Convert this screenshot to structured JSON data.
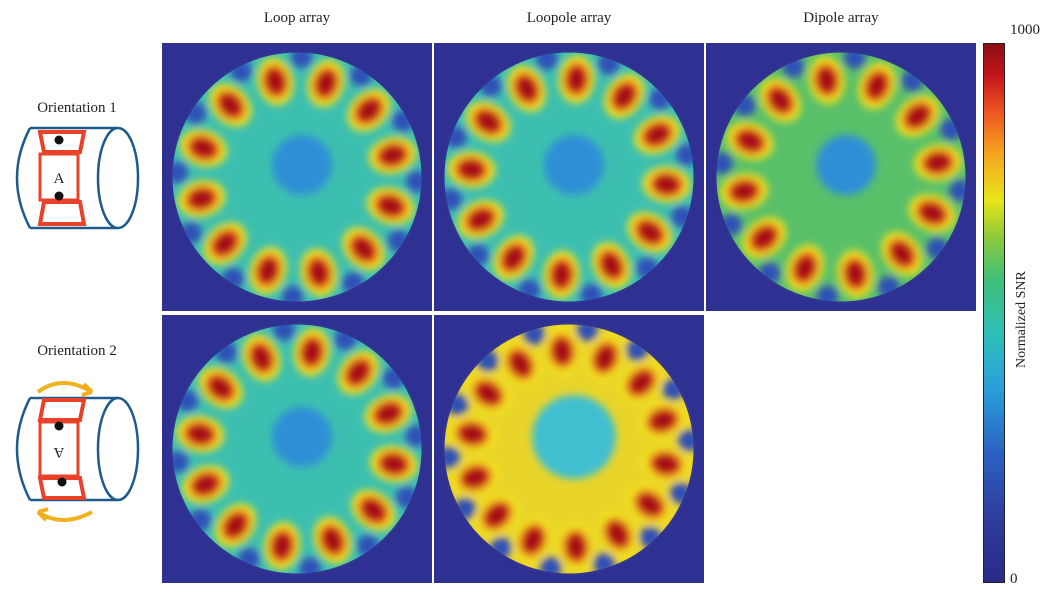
{
  "columns": {
    "loop": "Loop array",
    "loopole": "Loopole array",
    "dipole": "Dipole array"
  },
  "rows": {
    "orientation1": "Orientation 1",
    "orientation2": "Orientation 2"
  },
  "phantom_letter": "A",
  "colorbar": {
    "title": "Normalized SNR",
    "max": "1000",
    "min": "0"
  },
  "colors": {
    "background": "#2f3192",
    "coil": "#e8432a",
    "cylinder": "#1f5a8a",
    "arrow": "#f2b11c"
  }
}
